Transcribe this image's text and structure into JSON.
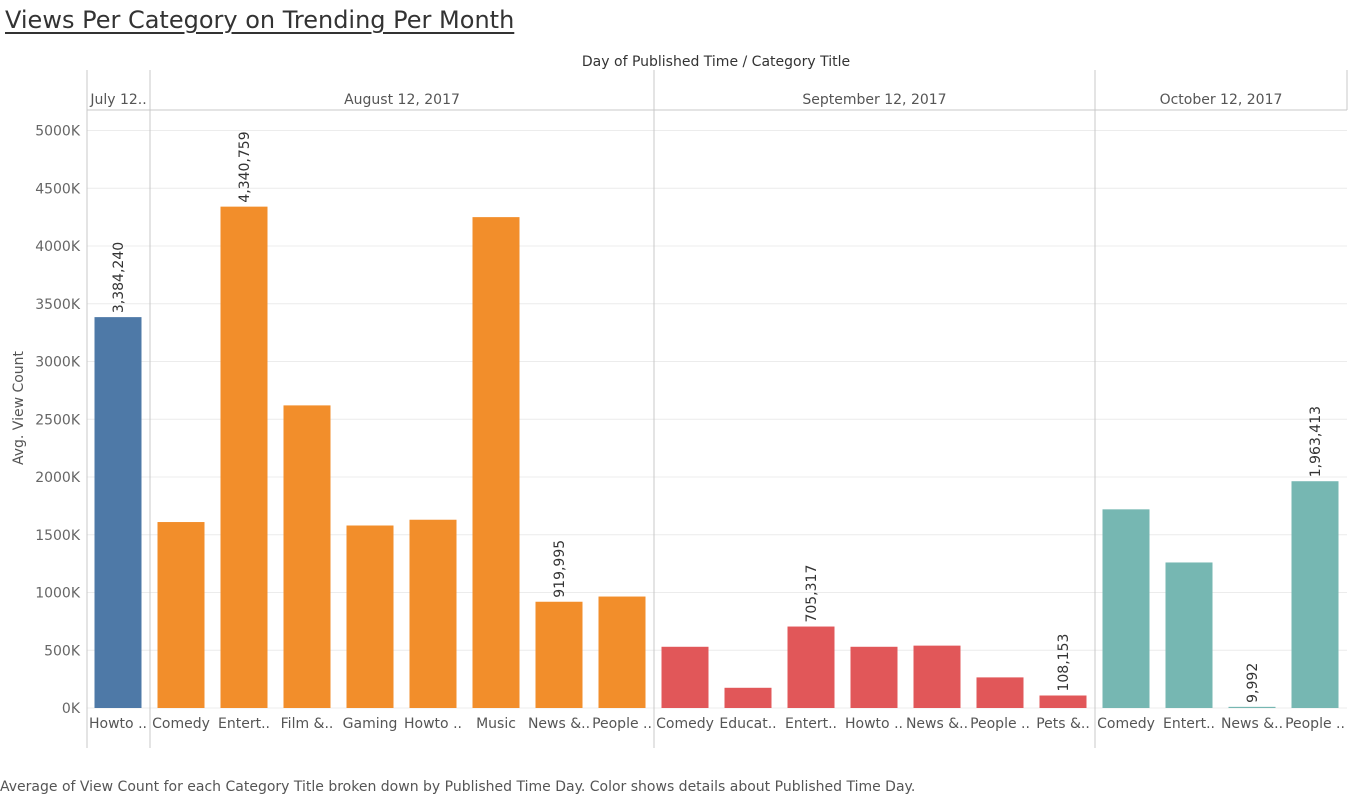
{
  "title": "Views Per Category on Trending Per Month",
  "caption": "Average of View Count for each Category Title broken down by Published Time Day.  Color shows details about Published Time Day.",
  "chart_data": {
    "type": "bar",
    "column_header": "Day of Published Time  /  Category Title",
    "ylabel": "Avg. View Count",
    "ylim": [
      0,
      5200000
    ],
    "yticks": [
      0,
      500000,
      1000000,
      1500000,
      2000000,
      2500000,
      3000000,
      3500000,
      4000000,
      4500000,
      5000000
    ],
    "ytick_labels": [
      "0K",
      "500K",
      "1000K",
      "1500K",
      "2000K",
      "2500K",
      "3000K",
      "3500K",
      "4000K",
      "4500K",
      "5000K"
    ],
    "grid": true,
    "groups": [
      {
        "label": "July 12..",
        "color": "#4e79a7",
        "bars": [
          {
            "category": "Howto ..",
            "value": 3384240,
            "label": "3,384,240"
          }
        ]
      },
      {
        "label": "August 12, 2017",
        "color": "#f28e2b",
        "bars": [
          {
            "category": "Comedy",
            "value": 1610000
          },
          {
            "category": "Entert..",
            "value": 4340759,
            "label": "4,340,759"
          },
          {
            "category": "Film &..",
            "value": 2620000
          },
          {
            "category": "Gaming",
            "value": 1580000
          },
          {
            "category": "Howto ..",
            "value": 1630000
          },
          {
            "category": "Music",
            "value": 4250000
          },
          {
            "category": "News &..",
            "value": 919995,
            "label": "919,995"
          },
          {
            "category": "People ..",
            "value": 965000
          }
        ]
      },
      {
        "label": "September 12, 2017",
        "color": "#e15759",
        "bars": [
          {
            "category": "Comedy",
            "value": 530000
          },
          {
            "category": "Educat..",
            "value": 175000
          },
          {
            "category": "Entert..",
            "value": 705317,
            "label": "705,317"
          },
          {
            "category": "Howto ..",
            "value": 530000
          },
          {
            "category": "News &..",
            "value": 540000
          },
          {
            "category": "People ..",
            "value": 265000
          },
          {
            "category": "Pets &..",
            "value": 108153,
            "label": "108,153"
          }
        ]
      },
      {
        "label": "October 12, 2017",
        "color": "#76b7b2",
        "bars": [
          {
            "category": "Comedy",
            "value": 1720000
          },
          {
            "category": "Entert..",
            "value": 1260000
          },
          {
            "category": "News &..",
            "value": 9992,
            "label": "9,992"
          },
          {
            "category": "People ..",
            "value": 1963413,
            "label": "1,963,413"
          }
        ]
      }
    ]
  }
}
